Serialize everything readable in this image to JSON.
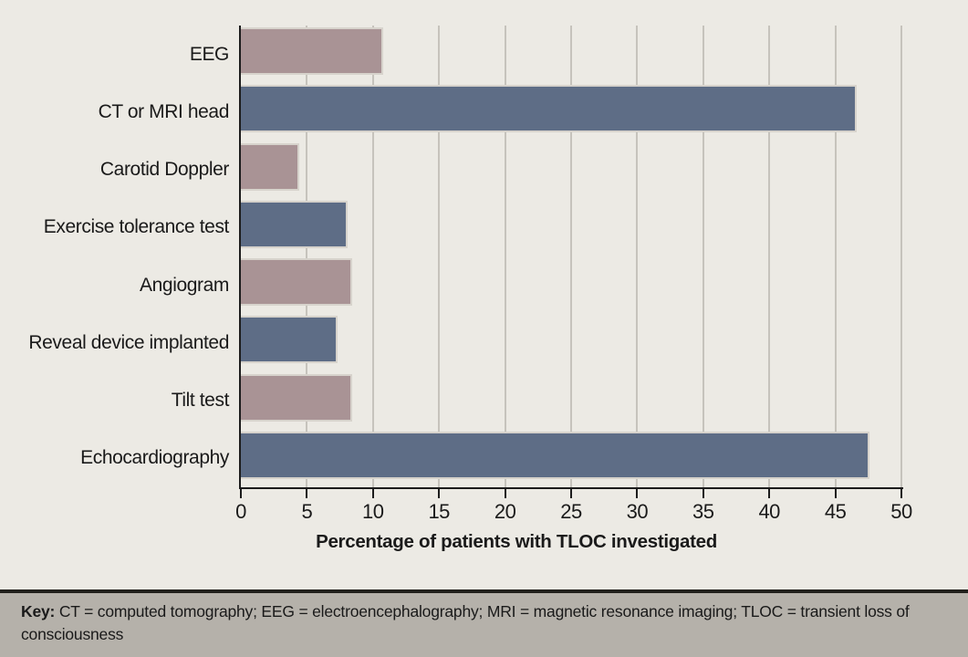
{
  "figure": {
    "background": "#eceae4",
    "key_panel": {
      "label": "Key:",
      "text": "CT = computed tomography; EEG = electroencephalography; MRI = magnetic resonance imaging; TLOC = transient loss of consciousness",
      "background": "#b5b1aa"
    }
  },
  "chart_data": {
    "type": "bar",
    "orientation": "horizontal",
    "title": "",
    "categories": [
      "EEG",
      "CT or MRI head",
      "Carotid Doppler",
      "Exercise tolerance test",
      "Angiogram",
      "Reveal device implanted",
      "Tilt test",
      "Echocardiography"
    ],
    "values": [
      10.8,
      46.6,
      4.4,
      8.1,
      8.4,
      7.3,
      8.4,
      47.6
    ],
    "series_colors": [
      "#a99395",
      "#5e6d86"
    ],
    "xlabel": "Percentage of patients with TLOC investigated",
    "ylabel": "",
    "xlim": [
      0,
      50
    ],
    "xticks": [
      0,
      5,
      10,
      15,
      20,
      25,
      30,
      35,
      40,
      45,
      50
    ],
    "grid": true,
    "legend": false,
    "gridline_color": "#c6c3bc",
    "axis_color": "#1c1c1c"
  }
}
